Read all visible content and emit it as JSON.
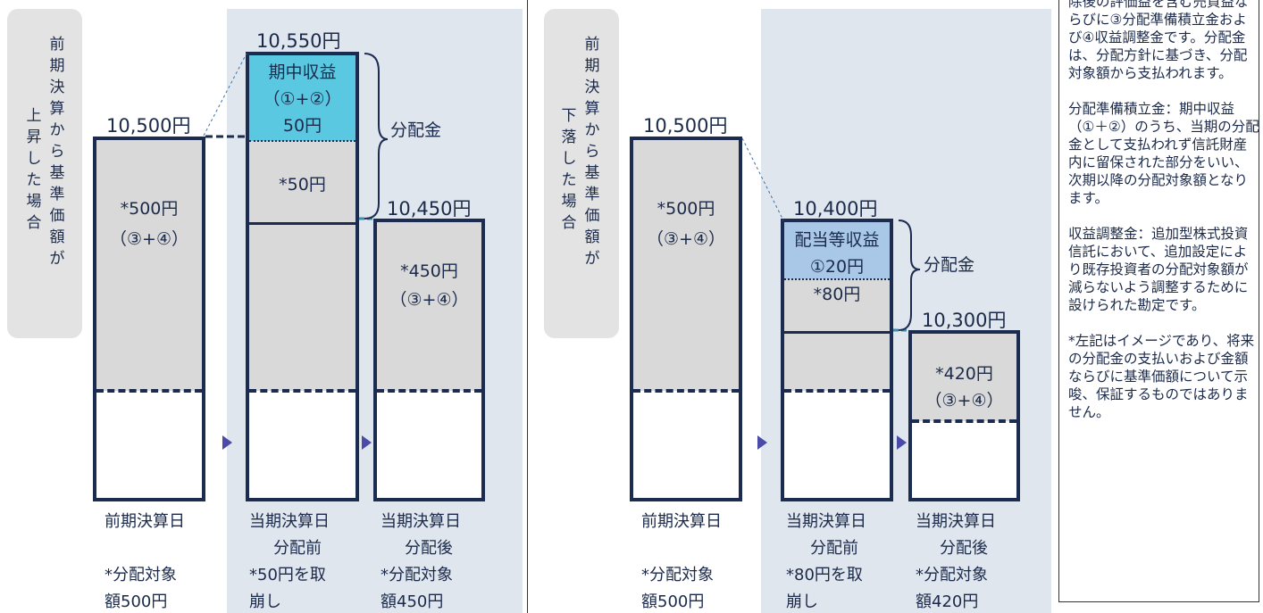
{
  "left": {
    "side_label": [
      "前",
      "期",
      "決",
      "算",
      "か",
      "ら",
      "基",
      "準",
      "価",
      "額",
      "が",
      "上",
      "昇",
      "し",
      "た",
      "場",
      "合"
    ],
    "prev_price": "10,500円",
    "prev_inner": "*500円",
    "prev_inner2": "（③+④）",
    "mid_price": "10,550円",
    "mid_income_title": "期中収益",
    "mid_income_sub": "（①+②）",
    "mid_income_val": "50円",
    "mid_gray_val": "*50円",
    "brace_label": "分配金",
    "post_price": "10,450円",
    "post_inner": "*450円",
    "post_inner2": "（③+④）",
    "bottom": {
      "c1": [
        "前期決算日",
        "",
        "*分配対象",
        "額500円"
      ],
      "c2": [
        "当期決算日",
        "分配前",
        "*50円を取",
        "崩し"
      ],
      "c3": [
        "当期決算日",
        "分配後",
        "*分配対象",
        "額450円"
      ]
    }
  },
  "right": {
    "side_label": [
      "前",
      "期",
      "決",
      "算",
      "か",
      "ら",
      "基",
      "準",
      "価",
      "額",
      "が",
      "下",
      "落",
      "し",
      "た",
      "場",
      "合"
    ],
    "prev_price": "10,500円",
    "prev_inner": "*500円",
    "prev_inner2": "（③+④）",
    "mid_price": "10,400円",
    "mid_income_title": "配当等収益",
    "mid_income_val": "①20円",
    "mid_gray_val": "*80円",
    "brace_label": "分配金",
    "post_price": "10,300円",
    "post_inner": "*420円",
    "post_inner2": "（③+④）",
    "bottom": {
      "c1": [
        "前期決算日",
        "",
        "*分配対象",
        "額500円"
      ],
      "c2": [
        "当期決算日",
        "分配前",
        "*80円を取",
        "崩し"
      ],
      "c3": [
        "当期決算日",
        "分配後",
        "*分配対象",
        "額420円"
      ]
    }
  },
  "sidebar": {
    "p1": "除後の評価益を含む売買益ならびに③分配準備積立金および④収益調整金です。分配金は、分配方針に基づき、分配対象額から支払われます。",
    "p2": "分配準備積立金：期中収益（①＋②）のうち、当期の分配金として支払われず信託財産内に留保された部分をいい、次期以降の分配対象額となります。",
    "p3": "収益調整金：追加型株式投資信託において、追加設定により既存投資者の分配対象額が減らないよう調整するために設けられた勘定です。",
    "p4": "*左記はイメージであり、将来の分配金の支払いおよび金額ならびに基準価額について示唆、保証するものではありません。"
  },
  "colors": {
    "navy": "#1c2b50",
    "panel": "#dfe6ee",
    "gray": "#d9d9d9",
    "cyan": "#5bc8e2",
    "lightblue": "#a9c8e8"
  }
}
